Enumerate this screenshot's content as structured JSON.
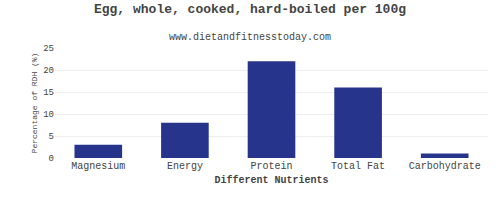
{
  "chart_data": {
    "type": "bar",
    "title": "Egg, whole, cooked, hard-boiled per 100g",
    "subtitle": "www.dietandfitnesstoday.com",
    "xlabel": "Different Nutrients",
    "ylabel": "Percentage of RDH (%)",
    "categories": [
      "Magnesium",
      "Energy",
      "Protein",
      "Total Fat",
      "Carbohydrate"
    ],
    "values": [
      3.0,
      8.0,
      22.0,
      16.0,
      1.0
    ],
    "color": "#27348b",
    "ylim": [
      0,
      25
    ],
    "yticks": [
      0,
      5,
      10,
      15,
      20,
      25
    ],
    "grid": true
  }
}
